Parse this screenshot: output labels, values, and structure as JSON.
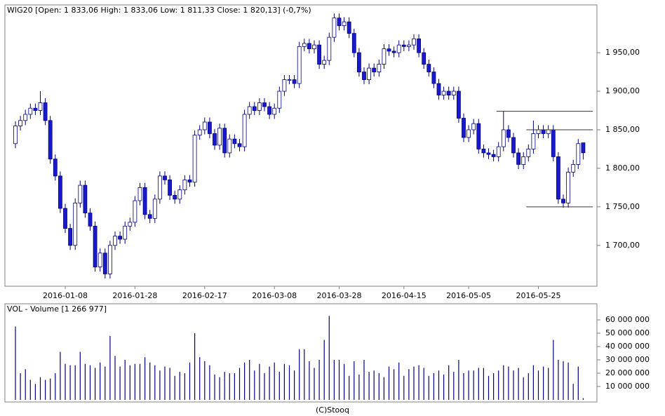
{
  "chart_data": [
    {
      "type": "candlestick",
      "title": "WIG20 [Open: 1 833,06 High: 1 833,06 Low: 1 811,33 Close: 1 820,13] (-0,7%)",
      "categories": [
        null,
        null,
        null,
        null,
        null,
        null,
        null,
        null,
        null,
        null,
        "2016-01-08",
        null,
        null,
        null,
        null,
        null,
        null,
        null,
        null,
        null,
        null,
        null,
        null,
        null,
        "2016-01-28",
        null,
        null,
        null,
        null,
        null,
        null,
        null,
        null,
        null,
        null,
        null,
        null,
        null,
        "2016-02-17",
        null,
        null,
        null,
        null,
        null,
        null,
        null,
        null,
        null,
        null,
        null,
        null,
        null,
        "2016-03-08",
        null,
        null,
        null,
        null,
        null,
        null,
        null,
        null,
        null,
        null,
        null,
        null,
        "2016-03-28",
        null,
        null,
        null,
        null,
        null,
        null,
        null,
        null,
        null,
        null,
        null,
        null,
        "2016-04-15",
        null,
        null,
        null,
        null,
        null,
        null,
        null,
        null,
        null,
        null,
        null,
        null,
        "2016-05-05",
        null,
        null,
        null,
        null,
        null,
        null,
        null,
        null,
        null,
        null,
        null,
        null,
        null,
        "2016-05-25",
        null,
        null,
        null,
        null,
        null,
        null,
        null,
        null,
        null
      ],
      "open": [
        1832,
        1855,
        1862,
        1870,
        1878,
        1875,
        1885,
        1862,
        1812,
        1790,
        1748,
        1722,
        1700,
        1755,
        1778,
        1742,
        1725,
        1672,
        1690,
        1663,
        1700,
        1712,
        1708,
        1725,
        1730,
        1758,
        1775,
        1740,
        1735,
        1760,
        1790,
        1785,
        1765,
        1760,
        1772,
        1785,
        1782,
        1843,
        1850,
        1860,
        1845,
        1830,
        1852,
        1820,
        1838,
        1832,
        1828,
        1870,
        1880,
        1875,
        1885,
        1880,
        1870,
        1878,
        1900,
        1915,
        1915,
        1910,
        1958,
        1962,
        1955,
        1960,
        1935,
        1940,
        1970,
        1995,
        1985,
        1990,
        1975,
        1950,
        1925,
        1915,
        1930,
        1925,
        1935,
        1955,
        1952,
        1950,
        1960,
        1958,
        1960,
        1968,
        1950,
        1935,
        1925,
        1910,
        1895,
        1900,
        1895,
        1900,
        1865,
        1840,
        1850,
        1858,
        1825,
        1820,
        1818,
        1815,
        1828,
        1850,
        1840,
        1820,
        1805,
        1815,
        1825,
        1845,
        1850,
        1845,
        1850,
        1815,
        1760,
        1755,
        1795,
        1805,
        1833.06
      ],
      "high": [
        1861,
        1868,
        1876,
        1884,
        1884,
        1900,
        1891,
        1868,
        1818,
        1796,
        1754,
        1728,
        1761,
        1784,
        1784,
        1748,
        1731,
        1696,
        1696,
        1706,
        1718,
        1718,
        1731,
        1736,
        1764,
        1781,
        1781,
        1746,
        1766,
        1796,
        1796,
        1791,
        1771,
        1778,
        1791,
        1791,
        1849,
        1856,
        1866,
        1866,
        1851,
        1858,
        1858,
        1844,
        1844,
        1838,
        1876,
        1886,
        1886,
        1891,
        1891,
        1886,
        1884,
        1906,
        1921,
        1921,
        1921,
        1964,
        1968,
        1968,
        1966,
        1966,
        1946,
        1976,
        2001,
        2001,
        1996,
        1996,
        1981,
        1956,
        1931,
        1936,
        1936,
        1941,
        1961,
        1961,
        1958,
        1966,
        1966,
        1966,
        1974,
        1974,
        1956,
        1941,
        1931,
        1916,
        1906,
        1906,
        1906,
        1906,
        1871,
        1856,
        1864,
        1864,
        1831,
        1826,
        1824,
        1834,
        1874,
        1856,
        1846,
        1826,
        1821,
        1831,
        1862,
        1856,
        1856,
        1856,
        1856,
        1821,
        1766,
        1801,
        1811,
        1838,
        1833.06
      ],
      "low": [
        1826,
        1849,
        1856,
        1864,
        1869,
        1869,
        1856,
        1806,
        1784,
        1742,
        1716,
        1694,
        1694,
        1749,
        1736,
        1719,
        1666,
        1666,
        1657,
        1657,
        1694,
        1702,
        1702,
        1719,
        1724,
        1752,
        1734,
        1729,
        1729,
        1754,
        1779,
        1759,
        1754,
        1754,
        1766,
        1776,
        1776,
        1837,
        1844,
        1839,
        1824,
        1824,
        1814,
        1814,
        1826,
        1822,
        1822,
        1864,
        1869,
        1869,
        1874,
        1864,
        1864,
        1872,
        1894,
        1909,
        1904,
        1904,
        1952,
        1949,
        1949,
        1929,
        1929,
        1934,
        1964,
        1979,
        1979,
        1969,
        1944,
        1919,
        1909,
        1909,
        1919,
        1919,
        1929,
        1946,
        1944,
        1944,
        1952,
        1952,
        1954,
        1944,
        1929,
        1919,
        1904,
        1889,
        1889,
        1889,
        1889,
        1859,
        1834,
        1834,
        1844,
        1819,
        1814,
        1812,
        1809,
        1809,
        1822,
        1834,
        1814,
        1799,
        1799,
        1809,
        1819,
        1839,
        1839,
        1839,
        1809,
        1754,
        1749,
        1749,
        1789,
        1799,
        1811.33
      ],
      "close": [
        1855,
        1862,
        1870,
        1878,
        1875,
        1885,
        1862,
        1812,
        1790,
        1748,
        1722,
        1700,
        1755,
        1778,
        1742,
        1725,
        1672,
        1690,
        1663,
        1700,
        1712,
        1708,
        1725,
        1730,
        1758,
        1775,
        1740,
        1735,
        1760,
        1790,
        1785,
        1765,
        1760,
        1772,
        1785,
        1782,
        1843,
        1850,
        1860,
        1845,
        1830,
        1852,
        1820,
        1838,
        1832,
        1828,
        1870,
        1880,
        1875,
        1885,
        1880,
        1870,
        1878,
        1900,
        1915,
        1915,
        1910,
        1958,
        1962,
        1955,
        1960,
        1935,
        1940,
        1970,
        1995,
        1985,
        1990,
        1975,
        1950,
        1925,
        1915,
        1930,
        1925,
        1935,
        1955,
        1952,
        1950,
        1960,
        1958,
        1960,
        1968,
        1950,
        1935,
        1925,
        1910,
        1895,
        1900,
        1895,
        1900,
        1865,
        1840,
        1850,
        1858,
        1825,
        1820,
        1818,
        1815,
        1828,
        1850,
        1840,
        1820,
        1805,
        1815,
        1825,
        1845,
        1850,
        1845,
        1850,
        1815,
        1760,
        1755,
        1795,
        1805,
        1832,
        1820.13
      ],
      "up_color": "#ffffff",
      "down_color": "#1a1acd",
      "edge_color": "#000080",
      "ylim": [
        1647,
        2012
      ],
      "yticks": [
        {
          "value": 1700,
          "label": "1 700,00"
        },
        {
          "value": 1750,
          "label": "1 750,00"
        },
        {
          "value": 1800,
          "label": "1 800,00"
        },
        {
          "value": 1850,
          "label": "1 850,00"
        },
        {
          "value": 1900,
          "label": "1 900,00"
        },
        {
          "value": 1950,
          "label": "1 950,00"
        }
      ],
      "hlines": [
        {
          "value": 1874,
          "start": 97
        },
        {
          "value": 1850,
          "start": 103
        },
        {
          "value": 1750,
          "start": 103
        }
      ],
      "hline_color": "#333333"
    },
    {
      "type": "volume",
      "title": "VOL - Volume [1 266 977]",
      "values": [
        55000000,
        20000000,
        23000000,
        15000000,
        12000000,
        17000000,
        15000000,
        16000000,
        20000000,
        36000000,
        27000000,
        26000000,
        26000000,
        36000000,
        27000000,
        26000000,
        24000000,
        28000000,
        25000000,
        48000000,
        33000000,
        25000000,
        30000000,
        26000000,
        27000000,
        27000000,
        32000000,
        28000000,
        26000000,
        22000000,
        25000000,
        24000000,
        18000000,
        21000000,
        20000000,
        28000000,
        50000000,
        32000000,
        29000000,
        26000000,
        19000000,
        17000000,
        21000000,
        20000000,
        20000000,
        24000000,
        28000000,
        30000000,
        22000000,
        27000000,
        20000000,
        25000000,
        28000000,
        21000000,
        27000000,
        26000000,
        22000000,
        38000000,
        38000000,
        29000000,
        24000000,
        30000000,
        45000000,
        63000000,
        30000000,
        30000000,
        27000000,
        18000000,
        29000000,
        19000000,
        30000000,
        21000000,
        22000000,
        20000000,
        17000000,
        25000000,
        23000000,
        28000000,
        18000000,
        23000000,
        25000000,
        26000000,
        24000000,
        18000000,
        20000000,
        22000000,
        19000000,
        26000000,
        21000000,
        30000000,
        20000000,
        22000000,
        22000000,
        24000000,
        24000000,
        18000000,
        20000000,
        22000000,
        26000000,
        25000000,
        22000000,
        24000000,
        17000000,
        20000000,
        26000000,
        22000000,
        25000000,
        24000000,
        45000000,
        30000000,
        29000000,
        28000000,
        12000000,
        25000000,
        1266977
      ],
      "color": "#000080",
      "ylim": [
        -1600000,
        72100000
      ],
      "yticks": [
        {
          "value": 10000000,
          "label": "10 000 000"
        },
        {
          "value": 20000000,
          "label": "20 000 000"
        },
        {
          "value": 30000000,
          "label": "30 000 000"
        },
        {
          "value": 40000000,
          "label": "40 000 000"
        },
        {
          "value": 50000000,
          "label": "50 000 000"
        },
        {
          "value": 60000000,
          "label": "60 000 000"
        }
      ],
      "footer": "(C)Stooq"
    }
  ]
}
